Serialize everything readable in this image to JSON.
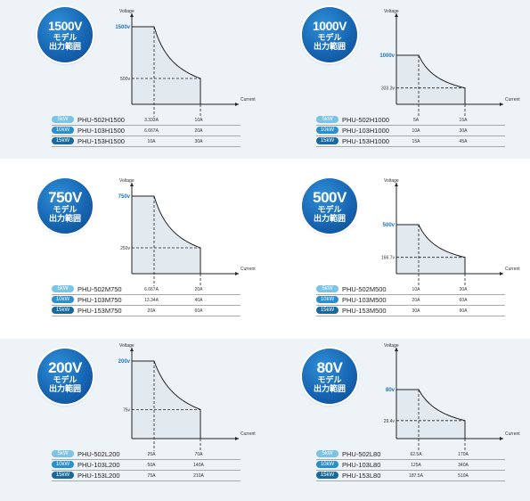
{
  "axis_labels": {
    "y": "Voltage",
    "x": "Current"
  },
  "colors": {
    "accent": "#1e73be",
    "panel_fill": "#e6ecf1",
    "band": "#eef3f7"
  },
  "chart_data": [
    {
      "type": "line",
      "badge": {
        "voltage": "1500V",
        "sub1": "モデル",
        "sub2": "出力範囲"
      },
      "vmax_label": "1500v",
      "vmin_label": "500v",
      "vmax": 1500,
      "vmin": 500,
      "models": [
        {
          "kw": "5kW",
          "name": "PHU-502H1500",
          "i_corner": "3.333A",
          "i_max": "10A"
        },
        {
          "kw": "10kW",
          "name": "PHU-103H1500",
          "i_corner": "6.667A",
          "i_max": "20A"
        },
        {
          "kw": "15kW",
          "name": "PHU-153H1500",
          "i_corner": "10A",
          "i_max": "30A"
        }
      ]
    },
    {
      "type": "line",
      "badge": {
        "voltage": "1000V",
        "sub1": "モデル",
        "sub2": "出力範囲"
      },
      "vmax_label": "1000v",
      "vmin_label": "333.3v",
      "vmax": 1000,
      "vmin": 333.3,
      "models": [
        {
          "kw": "5kW",
          "name": "PHU-502H1000",
          "i_corner": "5A",
          "i_max": "15A"
        },
        {
          "kw": "10kW",
          "name": "PHU-103H1000",
          "i_corner": "10A",
          "i_max": "30A"
        },
        {
          "kw": "15kW",
          "name": "PHU-153H1000",
          "i_corner": "15A",
          "i_max": "45A"
        }
      ]
    },
    {
      "type": "line",
      "badge": {
        "voltage": "750V",
        "sub1": "モデル",
        "sub2": "出力範囲"
      },
      "vmax_label": "750v",
      "vmin_label": "250v",
      "vmax": 750,
      "vmin": 250,
      "models": [
        {
          "kw": "5kW",
          "name": "PHU-502M750",
          "i_corner": "6.667A",
          "i_max": "20A"
        },
        {
          "kw": "10kW",
          "name": "PHU-103M750",
          "i_corner": "13.34A",
          "i_max": "40A"
        },
        {
          "kw": "15kW",
          "name": "PHU-153M750",
          "i_corner": "20A",
          "i_max": "60A"
        }
      ]
    },
    {
      "type": "line",
      "badge": {
        "voltage": "500V",
        "sub1": "モデル",
        "sub2": "出力範囲"
      },
      "vmax_label": "500v",
      "vmin_label": "166.7v",
      "vmax": 500,
      "vmin": 166.7,
      "models": [
        {
          "kw": "5kW",
          "name": "PHU-502M500",
          "i_corner": "10A",
          "i_max": "30A"
        },
        {
          "kw": "10kW",
          "name": "PHU-103M500",
          "i_corner": "20A",
          "i_max": "60A"
        },
        {
          "kw": "15kW",
          "name": "PHU-153M500",
          "i_corner": "30A",
          "i_max": "90A"
        }
      ]
    },
    {
      "type": "line",
      "badge": {
        "voltage": "200V",
        "sub1": "モデル",
        "sub2": "出力範囲"
      },
      "vmax_label": "200v",
      "vmin_label": "75v",
      "vmax": 200,
      "vmin": 75,
      "models": [
        {
          "kw": "5kW",
          "name": "PHU-502L200",
          "i_corner": "25A",
          "i_max": "70A"
        },
        {
          "kw": "10kW",
          "name": "PHU-103L200",
          "i_corner": "50A",
          "i_max": "140A"
        },
        {
          "kw": "15kW",
          "name": "PHU-153L200",
          "i_corner": "75A",
          "i_max": "210A"
        }
      ]
    },
    {
      "type": "line",
      "badge": {
        "voltage": "80V",
        "sub1": "モデル",
        "sub2": "出力範囲"
      },
      "vmax_label": "80v",
      "vmin_label": "29.4v",
      "vmax": 80,
      "vmin": 29.4,
      "models": [
        {
          "kw": "5kW",
          "name": "PHU-502L80",
          "i_corner": "62.5A",
          "i_max": "170A"
        },
        {
          "kw": "10kW",
          "name": "PHU-103L80",
          "i_corner": "125A",
          "i_max": "340A"
        },
        {
          "kw": "15kW",
          "name": "PHU-153L80",
          "i_corner": "187.5A",
          "i_max": "510A"
        }
      ]
    }
  ]
}
